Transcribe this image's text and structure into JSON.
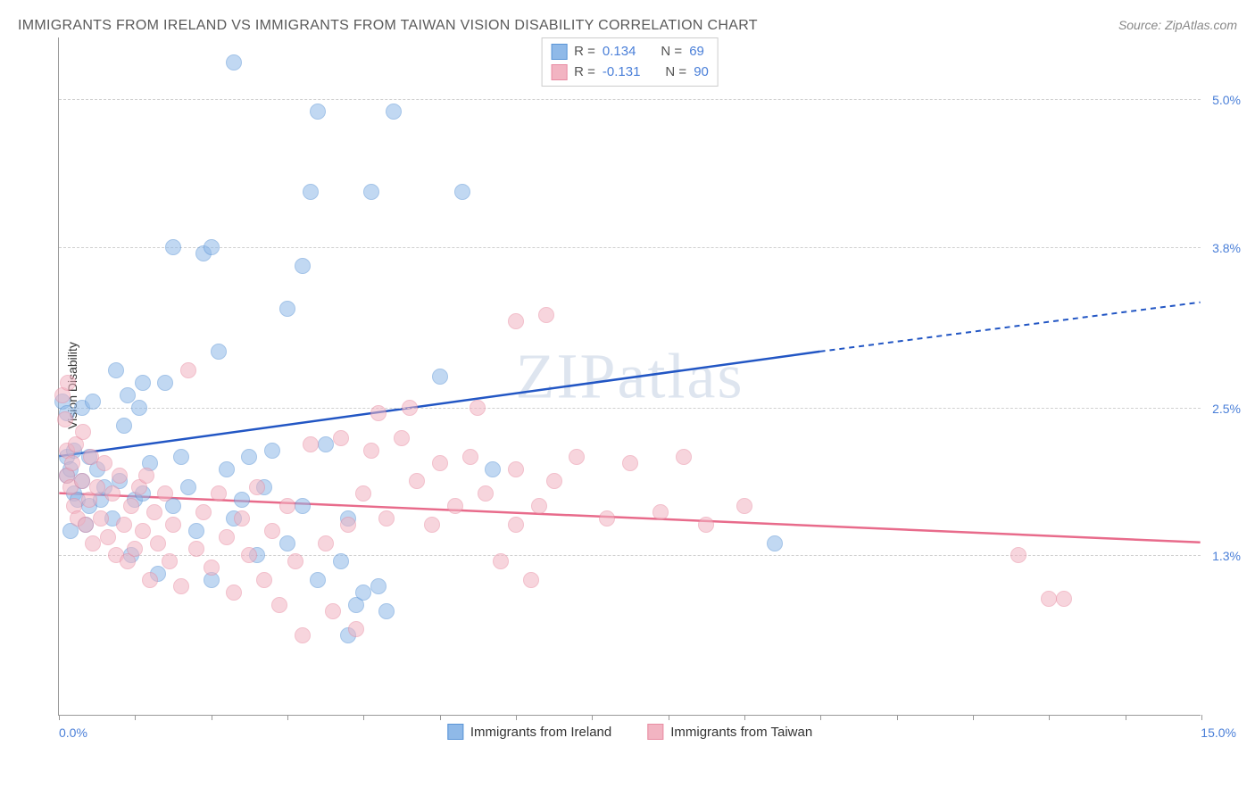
{
  "title": "IMMIGRANTS FROM IRELAND VS IMMIGRANTS FROM TAIWAN VISION DISABILITY CORRELATION CHART",
  "source": "Source: ZipAtlas.com",
  "watermark": "ZIPatlas",
  "yaxis_label": "Vision Disability",
  "chart": {
    "type": "scatter",
    "xlim": [
      0,
      15
    ],
    "ylim": [
      0,
      5.5
    ],
    "xticks": [
      0,
      1,
      2,
      3,
      4,
      5,
      6,
      7,
      8,
      9,
      10,
      11,
      12,
      13,
      14,
      15
    ],
    "xlabel_min": "0.0%",
    "xlabel_max": "15.0%",
    "ygrid": [
      {
        "value": 1.3,
        "label": "1.3%"
      },
      {
        "value": 2.5,
        "label": "2.5%"
      },
      {
        "value": 3.8,
        "label": "3.8%"
      },
      {
        "value": 5.0,
        "label": "5.0%"
      }
    ],
    "background_color": "#ffffff",
    "grid_color": "#d0d0d0",
    "axis_color": "#999999",
    "marker_radius": 9,
    "marker_opacity": 0.55,
    "series": [
      {
        "name": "Immigrants from Ireland",
        "fill_color": "#8fb9e8",
        "stroke_color": "#5a94d6",
        "line_color": "#2256c4",
        "r_value": "0.134",
        "n_value": "69",
        "trend": {
          "x1": 0,
          "y1": 2.1,
          "x2": 10,
          "y2": 2.95,
          "x_dash": 15,
          "y_dash": 3.35
        },
        "points": [
          [
            0.05,
            2.55
          ],
          [
            0.1,
            2.1
          ],
          [
            0.1,
            1.95
          ],
          [
            0.1,
            2.45
          ],
          [
            0.15,
            2.0
          ],
          [
            0.15,
            1.5
          ],
          [
            0.2,
            1.8
          ],
          [
            0.2,
            2.15
          ],
          [
            0.25,
            1.75
          ],
          [
            0.3,
            1.9
          ],
          [
            0.3,
            2.5
          ],
          [
            0.35,
            1.55
          ],
          [
            0.4,
            2.1
          ],
          [
            0.4,
            1.7
          ],
          [
            0.45,
            2.55
          ],
          [
            0.5,
            2.0
          ],
          [
            0.55,
            1.75
          ],
          [
            0.6,
            1.85
          ],
          [
            0.7,
            1.6
          ],
          [
            0.75,
            2.8
          ],
          [
            0.8,
            1.9
          ],
          [
            0.85,
            2.35
          ],
          [
            0.9,
            2.6
          ],
          [
            0.95,
            1.3
          ],
          [
            1.0,
            1.75
          ],
          [
            1.05,
            2.5
          ],
          [
            1.1,
            1.8
          ],
          [
            1.2,
            2.05
          ],
          [
            1.3,
            1.15
          ],
          [
            1.4,
            2.7
          ],
          [
            1.5,
            1.7
          ],
          [
            1.5,
            3.8
          ],
          [
            1.6,
            2.1
          ],
          [
            1.7,
            1.85
          ],
          [
            1.8,
            1.5
          ],
          [
            1.9,
            3.75
          ],
          [
            2.0,
            1.1
          ],
          [
            2.1,
            2.95
          ],
          [
            2.2,
            2.0
          ],
          [
            2.3,
            1.6
          ],
          [
            2.3,
            5.3
          ],
          [
            2.4,
            1.75
          ],
          [
            2.5,
            2.1
          ],
          [
            2.6,
            1.3
          ],
          [
            2.7,
            1.85
          ],
          [
            2.8,
            2.15
          ],
          [
            3.0,
            1.4
          ],
          [
            3.0,
            3.3
          ],
          [
            3.2,
            1.7
          ],
          [
            3.2,
            3.65
          ],
          [
            3.3,
            4.25
          ],
          [
            3.4,
            1.1
          ],
          [
            3.4,
            4.9
          ],
          [
            3.5,
            2.2
          ],
          [
            3.7,
            1.25
          ],
          [
            3.8,
            0.65
          ],
          [
            3.8,
            1.6
          ],
          [
            3.9,
            0.9
          ],
          [
            4.0,
            1.0
          ],
          [
            4.1,
            4.25
          ],
          [
            4.2,
            1.05
          ],
          [
            4.3,
            0.85
          ],
          [
            4.4,
            4.9
          ],
          [
            5.0,
            2.75
          ],
          [
            5.3,
            4.25
          ],
          [
            5.7,
            2.0
          ],
          [
            9.4,
            1.4
          ],
          [
            2.0,
            3.8
          ],
          [
            1.1,
            2.7
          ]
        ]
      },
      {
        "name": "Immigrants from Taiwan",
        "fill_color": "#f2b4c2",
        "stroke_color": "#e88ca2",
        "line_color": "#e86b8b",
        "r_value": "-0.131",
        "n_value": "90",
        "trend": {
          "x1": 0,
          "y1": 1.8,
          "x2": 15,
          "y2": 1.4
        },
        "points": [
          [
            0.05,
            2.6
          ],
          [
            0.08,
            2.4
          ],
          [
            0.1,
            2.15
          ],
          [
            0.1,
            1.95
          ],
          [
            0.12,
            2.7
          ],
          [
            0.15,
            1.85
          ],
          [
            0.18,
            2.05
          ],
          [
            0.2,
            1.7
          ],
          [
            0.22,
            2.2
          ],
          [
            0.25,
            1.6
          ],
          [
            0.3,
            1.9
          ],
          [
            0.32,
            2.3
          ],
          [
            0.35,
            1.55
          ],
          [
            0.4,
            1.75
          ],
          [
            0.42,
            2.1
          ],
          [
            0.45,
            1.4
          ],
          [
            0.5,
            1.85
          ],
          [
            0.55,
            1.6
          ],
          [
            0.6,
            2.05
          ],
          [
            0.65,
            1.45
          ],
          [
            0.7,
            1.8
          ],
          [
            0.75,
            1.3
          ],
          [
            0.8,
            1.95
          ],
          [
            0.85,
            1.55
          ],
          [
            0.9,
            1.25
          ],
          [
            0.95,
            1.7
          ],
          [
            1.0,
            1.35
          ],
          [
            1.05,
            1.85
          ],
          [
            1.1,
            1.5
          ],
          [
            1.15,
            1.95
          ],
          [
            1.2,
            1.1
          ],
          [
            1.25,
            1.65
          ],
          [
            1.3,
            1.4
          ],
          [
            1.4,
            1.8
          ],
          [
            1.45,
            1.25
          ],
          [
            1.5,
            1.55
          ],
          [
            1.6,
            1.05
          ],
          [
            1.7,
            2.8
          ],
          [
            1.8,
            1.35
          ],
          [
            1.9,
            1.65
          ],
          [
            2.0,
            1.2
          ],
          [
            2.1,
            1.8
          ],
          [
            2.2,
            1.45
          ],
          [
            2.3,
            1.0
          ],
          [
            2.4,
            1.6
          ],
          [
            2.5,
            1.3
          ],
          [
            2.6,
            1.85
          ],
          [
            2.7,
            1.1
          ],
          [
            2.8,
            1.5
          ],
          [
            2.9,
            0.9
          ],
          [
            3.0,
            1.7
          ],
          [
            3.1,
            1.25
          ],
          [
            3.3,
            2.2
          ],
          [
            3.5,
            1.4
          ],
          [
            3.6,
            0.85
          ],
          [
            3.7,
            2.25
          ],
          [
            3.8,
            1.55
          ],
          [
            3.9,
            0.7
          ],
          [
            4.0,
            1.8
          ],
          [
            4.1,
            2.15
          ],
          [
            4.2,
            2.45
          ],
          [
            4.3,
            1.6
          ],
          [
            4.5,
            2.25
          ],
          [
            4.7,
            1.9
          ],
          [
            4.9,
            1.55
          ],
          [
            5.0,
            2.05
          ],
          [
            5.2,
            1.7
          ],
          [
            5.4,
            2.1
          ],
          [
            5.6,
            1.8
          ],
          [
            5.8,
            1.25
          ],
          [
            6.0,
            2.0
          ],
          [
            6.0,
            3.2
          ],
          [
            6.2,
            1.1
          ],
          [
            6.3,
            1.7
          ],
          [
            6.4,
            3.25
          ],
          [
            6.5,
            1.9
          ],
          [
            6.8,
            2.1
          ],
          [
            7.2,
            1.6
          ],
          [
            7.5,
            2.05
          ],
          [
            7.9,
            1.65
          ],
          [
            8.2,
            2.1
          ],
          [
            8.5,
            1.55
          ],
          [
            9.0,
            1.7
          ],
          [
            12.6,
            1.3
          ],
          [
            13.0,
            0.95
          ],
          [
            13.2,
            0.95
          ],
          [
            3.2,
            0.65
          ],
          [
            4.6,
            2.5
          ],
          [
            5.5,
            2.5
          ],
          [
            6.0,
            1.55
          ]
        ]
      }
    ]
  },
  "legend_top": {
    "r_label": "R =",
    "n_label": "N ="
  }
}
